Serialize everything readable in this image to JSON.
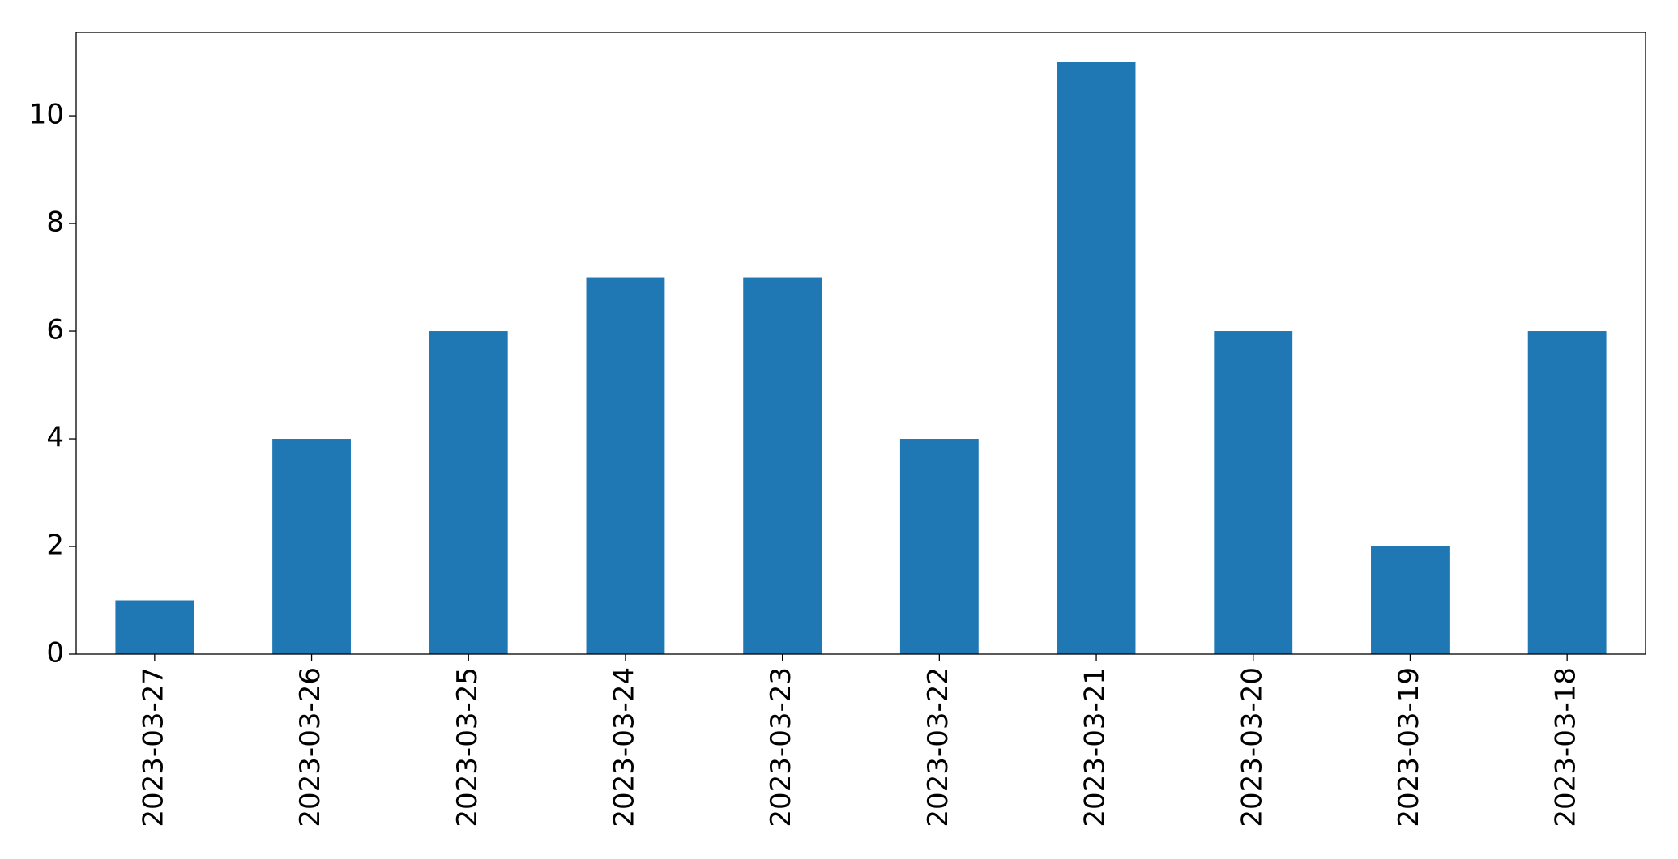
{
  "chart_data": {
    "type": "bar",
    "categories": [
      "2023-03-27",
      "2023-03-26",
      "2023-03-25",
      "2023-03-24",
      "2023-03-23",
      "2023-03-22",
      "2023-03-21",
      "2023-03-20",
      "2023-03-19",
      "2023-03-18"
    ],
    "values": [
      1,
      4,
      6,
      7,
      7,
      4,
      11,
      6,
      2,
      6
    ],
    "color": "#1f77b4",
    "ylim": [
      0,
      11.55
    ],
    "yticks": [
      0,
      2,
      4,
      6,
      8,
      10
    ],
    "grid": false
  }
}
